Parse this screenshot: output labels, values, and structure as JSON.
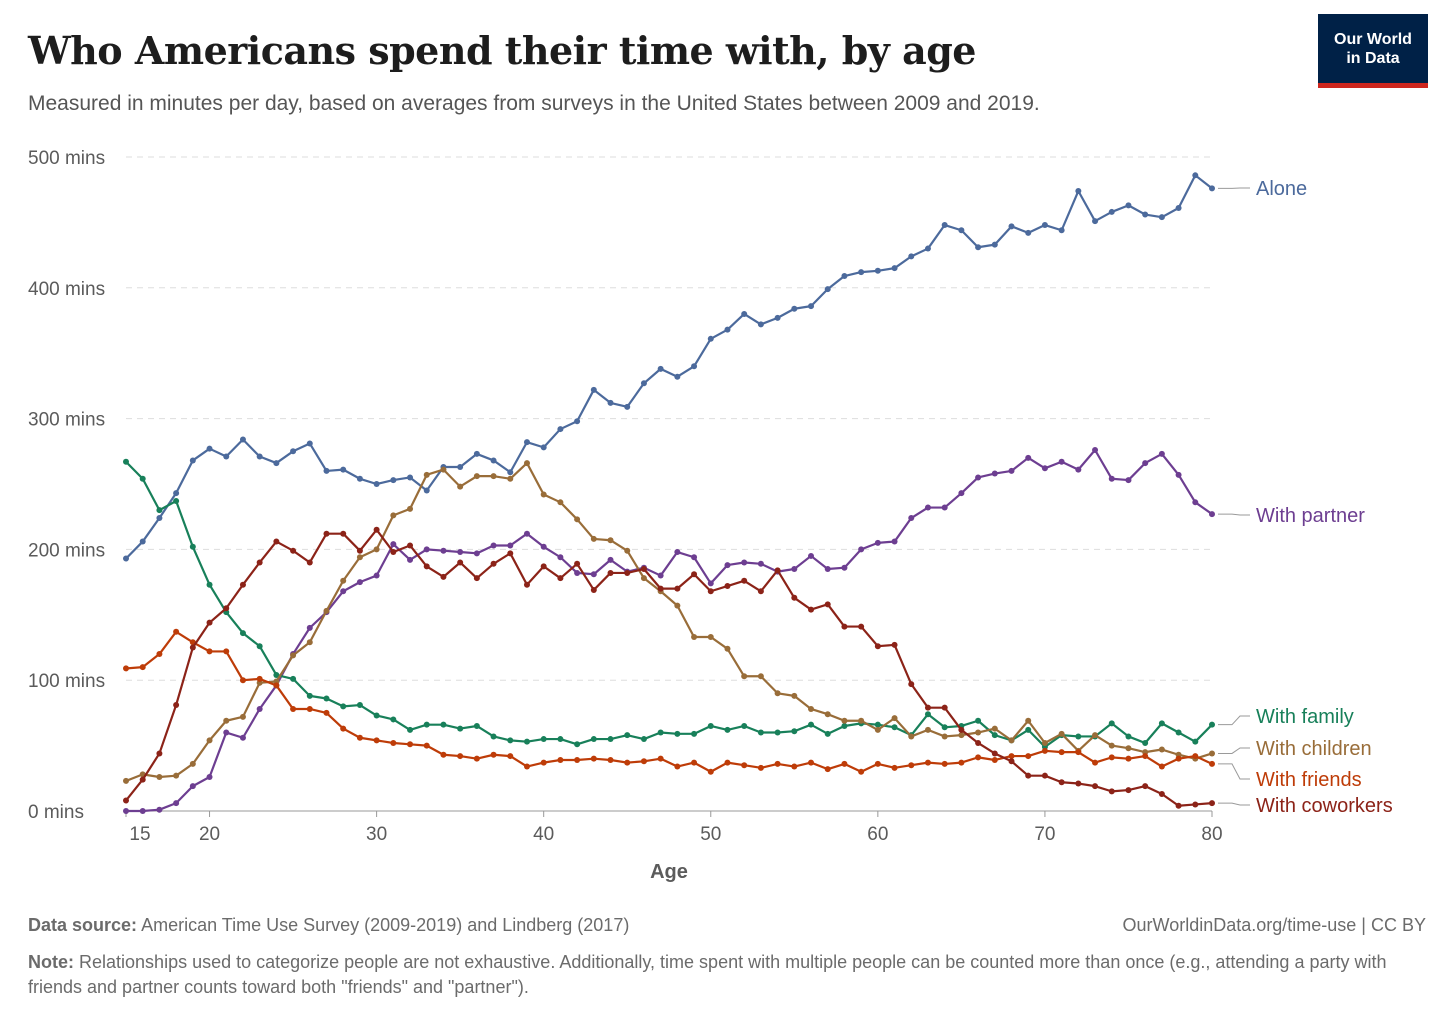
{
  "header": {
    "title": "Who Americans spend their time with, by age",
    "subtitle": "Measured in minutes per day, based on averages from surveys in the United States between 2009 and 2019."
  },
  "logo": {
    "line1": "Our World",
    "line2": "in Data",
    "bg_color": "#002147",
    "accent_color": "#ce261e"
  },
  "footer": {
    "source_label": "Data source:",
    "source_text": "American Time Use Survey (2009-2019) and Lindberg (2017)",
    "license": "OurWorldinData.org/time-use | CC BY",
    "note_label": "Note:",
    "note_text": "Relationships used to categorize people are not exhaustive. Additionally, time spent with multiple people can be counted more than once (e.g., attending a party with friends and partner counts toward both \"friends\" and \"partner\")."
  },
  "chart_data": {
    "type": "line",
    "xlabel": "Age",
    "xlim": [
      15,
      80
    ],
    "xticks": [
      15,
      20,
      30,
      40,
      50,
      60,
      70,
      80
    ],
    "ylim": [
      0,
      500
    ],
    "yticks": [
      {
        "value": 0,
        "label": "0 mins"
      },
      {
        "value": 100,
        "label": "100 mins"
      },
      {
        "value": 200,
        "label": "200 mins"
      },
      {
        "value": 300,
        "label": "300 mins"
      },
      {
        "value": 400,
        "label": "400 mins"
      },
      {
        "value": 500,
        "label": "500 mins"
      }
    ],
    "grid": "horizontal dashed",
    "legend": "right, labels at line ends",
    "x": [
      15,
      16,
      17,
      18,
      19,
      20,
      21,
      22,
      23,
      24,
      25,
      26,
      27,
      28,
      29,
      30,
      31,
      32,
      33,
      34,
      35,
      36,
      37,
      38,
      39,
      40,
      41,
      42,
      43,
      44,
      45,
      46,
      47,
      48,
      49,
      50,
      51,
      52,
      53,
      54,
      55,
      56,
      57,
      58,
      59,
      60,
      61,
      62,
      63,
      64,
      65,
      66,
      67,
      68,
      69,
      70,
      71,
      72,
      73,
      74,
      75,
      76,
      77,
      78,
      79,
      80
    ],
    "series": [
      {
        "name": "Alone",
        "color": "#4c6a9c",
        "values": [
          193,
          206,
          224,
          243,
          268,
          277,
          271,
          284,
          271,
          266,
          275,
          281,
          260,
          261,
          254,
          250,
          253,
          255,
          245,
          263,
          263,
          273,
          268,
          259,
          282,
          278,
          292,
          298,
          322,
          312,
          309,
          327,
          338,
          332,
          340,
          361,
          368,
          380,
          372,
          377,
          384,
          386,
          399,
          409,
          412,
          413,
          415,
          424,
          430,
          448,
          444,
          431,
          433,
          447,
          442,
          448,
          444,
          474,
          451,
          458,
          463,
          456,
          454,
          461,
          486,
          476
        ]
      },
      {
        "name": "With partner",
        "color": "#6d3e91",
        "values": [
          0,
          0,
          1,
          6,
          19,
          26,
          60,
          56,
          78,
          96,
          120,
          140,
          152,
          168,
          175,
          180,
          204,
          192,
          200,
          199,
          198,
          197,
          203,
          203,
          212,
          202,
          194,
          182,
          181,
          192,
          183,
          186,
          180,
          198,
          194,
          174,
          188,
          190,
          189,
          183,
          185,
          195,
          185,
          186,
          200,
          205,
          206,
          224,
          232,
          232,
          243,
          255,
          258,
          260,
          270,
          262,
          267,
          261,
          276,
          254,
          253,
          266,
          273,
          257,
          236,
          227
        ]
      },
      {
        "name": "With family",
        "color": "#18805a",
        "values": [
          267,
          254,
          230,
          237,
          202,
          173,
          152,
          136,
          126,
          104,
          101,
          88,
          86,
          80,
          81,
          73,
          70,
          62,
          66,
          66,
          63,
          65,
          57,
          54,
          53,
          55,
          55,
          51,
          55,
          55,
          58,
          55,
          60,
          59,
          59,
          65,
          62,
          65,
          60,
          60,
          61,
          66,
          59,
          65,
          67,
          66,
          64,
          58,
          74,
          64,
          65,
          69,
          58,
          54,
          62,
          49,
          58,
          57,
          57,
          67,
          57,
          52,
          67,
          60,
          53,
          66
        ]
      },
      {
        "name": "With children",
        "color": "#996d39",
        "values": [
          23,
          28,
          26,
          27,
          36,
          54,
          69,
          72,
          98,
          99,
          119,
          129,
          153,
          176,
          194,
          200,
          226,
          231,
          257,
          261,
          248,
          256,
          256,
          254,
          266,
          242,
          236,
          223,
          208,
          207,
          199,
          178,
          168,
          157,
          133,
          133,
          124,
          103,
          103,
          90,
          88,
          78,
          74,
          69,
          69,
          62,
          71,
          57,
          62,
          57,
          58,
          60,
          63,
          54,
          69,
          52,
          59,
          46,
          58,
          50,
          48,
          45,
          47,
          43,
          40,
          44
        ]
      },
      {
        "name": "With friends",
        "color": "#be3c08",
        "values": [
          109,
          110,
          120,
          137,
          129,
          122,
          122,
          100,
          101,
          96,
          78,
          78,
          75,
          63,
          56,
          54,
          52,
          51,
          50,
          43,
          42,
          40,
          43,
          42,
          34,
          37,
          39,
          39,
          40,
          39,
          37,
          38,
          40,
          34,
          37,
          30,
          37,
          35,
          33,
          36,
          34,
          37,
          32,
          36,
          30,
          36,
          33,
          35,
          37,
          36,
          37,
          41,
          39,
          42,
          42,
          46,
          45,
          45,
          37,
          41,
          40,
          42,
          34,
          40,
          42,
          36
        ]
      },
      {
        "name": "With coworkers",
        "color": "#8c2318",
        "values": [
          8,
          24,
          44,
          81,
          125,
          144,
          155,
          173,
          190,
          206,
          199,
          190,
          212,
          212,
          199,
          215,
          198,
          203,
          187,
          179,
          190,
          178,
          189,
          197,
          173,
          187,
          178,
          189,
          169,
          182,
          182,
          185,
          170,
          170,
          181,
          168,
          172,
          176,
          168,
          184,
          163,
          154,
          158,
          141,
          141,
          126,
          127,
          97,
          79,
          79,
          62,
          52,
          44,
          38,
          27,
          27,
          22,
          21,
          19,
          15,
          16,
          19,
          13,
          4,
          5,
          6
        ]
      }
    ]
  }
}
